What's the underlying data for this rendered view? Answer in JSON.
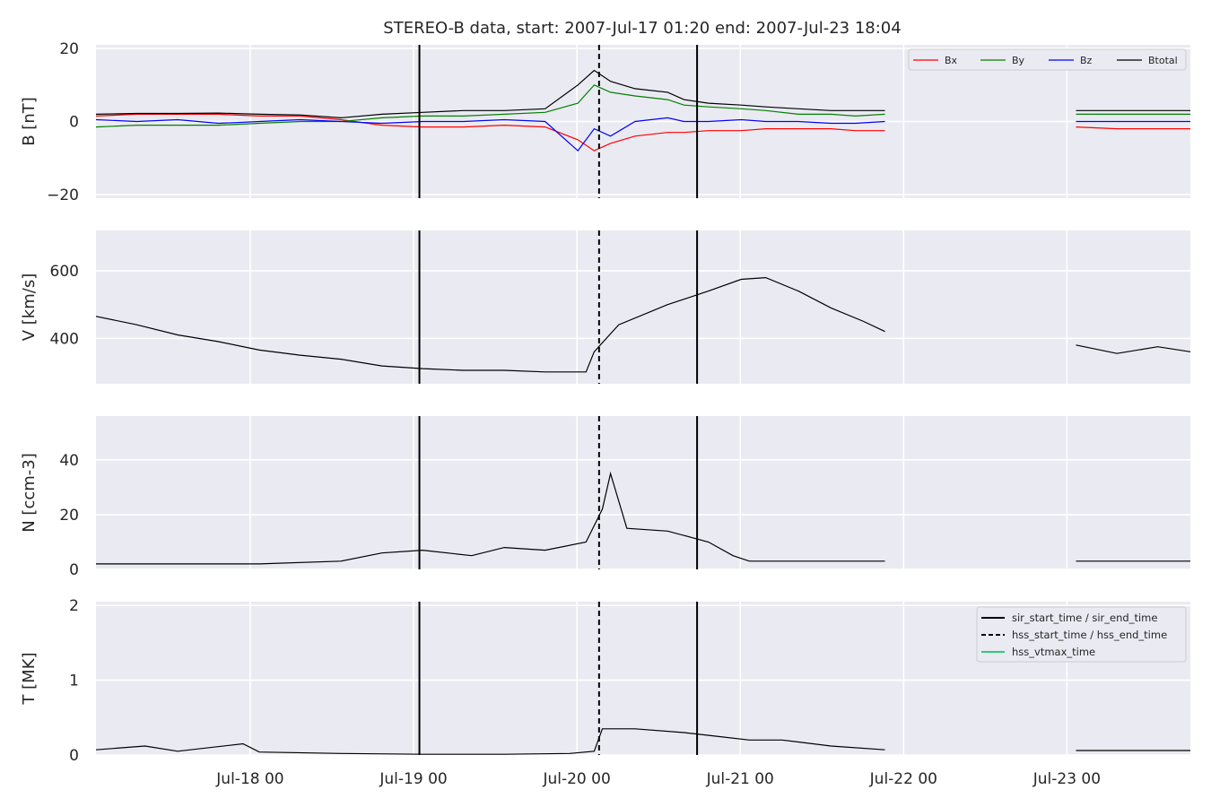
{
  "figure": {
    "title": "STEREO-B data, start: 2007-Jul-17 01:20  end: 2007-Jul-23 18:04"
  },
  "colors": {
    "panel_bg": "#eaeaf2",
    "grid": "#ffffff",
    "bx": "#ff0000",
    "by": "#008000",
    "bz": "#0000ff",
    "btotal": "#000000",
    "vtmax": "#2ecc71"
  },
  "chart_data": [
    {
      "type": "line",
      "id": "B",
      "ylabel": "B [nT]",
      "ylim": [
        -21,
        21
      ],
      "yticks": [
        -20,
        0,
        20
      ],
      "ytick_labels": [
        "−20",
        "0",
        "20"
      ],
      "grid": true,
      "legend": {
        "placement": "top-right",
        "entries": [
          "Bx",
          "By",
          "Bz",
          "Btotal"
        ]
      },
      "x_days": [
        0,
        0.25,
        0.5,
        0.75,
        1.0,
        1.25,
        1.5,
        1.75,
        2.0,
        2.25,
        2.5,
        2.75,
        2.95,
        3.05,
        3.15,
        3.3,
        3.5,
        3.6,
        3.75,
        3.95,
        4.1,
        4.3,
        4.5,
        4.65,
        4.83
      ],
      "series": [
        {
          "name": "Bx",
          "values": [
            1.5,
            2.0,
            2.0,
            2.0,
            1.5,
            1.5,
            0.5,
            -1.0,
            -1.5,
            -1.5,
            -1.0,
            -1.5,
            -5.0,
            -8.0,
            -6.0,
            -4.0,
            -3.0,
            -3.0,
            -2.5,
            -2.5,
            -2.0,
            -2.0,
            -2.0,
            -2.5,
            -2.5
          ]
        },
        {
          "name": "By",
          "values": [
            -1.5,
            -1.0,
            -1.0,
            -1.0,
            -0.5,
            0.0,
            0.0,
            1.0,
            1.5,
            1.5,
            2.0,
            2.5,
            5.0,
            10.0,
            8.0,
            7.0,
            6.0,
            4.5,
            4.0,
            3.5,
            3.0,
            2.0,
            2.0,
            1.5,
            2.0
          ]
        },
        {
          "name": "Bz",
          "values": [
            0.5,
            0.0,
            0.5,
            -0.5,
            0.0,
            0.5,
            0.0,
            -0.5,
            0.0,
            0.0,
            0.5,
            0.0,
            -8.0,
            -2.0,
            -4.0,
            0.0,
            1.0,
            0.0,
            0.0,
            0.5,
            0.0,
            0.0,
            -0.5,
            -0.5,
            0.0
          ]
        },
        {
          "name": "Btotal",
          "values": [
            2.0,
            2.2,
            2.2,
            2.3,
            2.0,
            1.8,
            1.0,
            2.0,
            2.5,
            3.0,
            3.0,
            3.5,
            10.0,
            14.0,
            11.0,
            9.0,
            8.0,
            6.0,
            5.0,
            4.5,
            4.0,
            3.5,
            3.0,
            3.0,
            3.0
          ]
        }
      ],
      "x2_days": [
        6.0,
        6.25,
        6.5,
        6.7
      ],
      "series2": [
        {
          "name": "Bx",
          "values": [
            -1.5,
            -2.0,
            -2.0,
            -2.0
          ]
        },
        {
          "name": "By",
          "values": [
            2.0,
            2.0,
            2.0,
            2.0
          ]
        },
        {
          "name": "Bz",
          "values": [
            0.0,
            0.0,
            0.0,
            0.0
          ]
        },
        {
          "name": "Btotal",
          "values": [
            3.0,
            3.0,
            3.0,
            3.0
          ]
        }
      ]
    },
    {
      "type": "line",
      "id": "V",
      "ylabel": "V [km/s]",
      "ylim": [
        265,
        720
      ],
      "yticks": [
        400,
        600
      ],
      "ytick_labels": [
        "400",
        "600"
      ],
      "grid": true,
      "x_days": [
        0,
        0.25,
        0.5,
        0.75,
        1.0,
        1.25,
        1.5,
        1.75,
        2.0,
        2.25,
        2.5,
        2.75,
        3.0,
        3.05,
        3.2,
        3.5,
        3.75,
        3.95,
        4.1,
        4.3,
        4.5,
        4.7,
        4.83
      ],
      "values": [
        465,
        440,
        410,
        390,
        365,
        350,
        338,
        318,
        310,
        305,
        305,
        300,
        300,
        360,
        440,
        500,
        540,
        575,
        580,
        540,
        490,
        450,
        420
      ],
      "x2_days": [
        6.0,
        6.25,
        6.5,
        6.7
      ],
      "values2": [
        380,
        355,
        375,
        360
      ]
    },
    {
      "type": "line",
      "id": "N",
      "ylabel": "N [ccm-3]",
      "ylim": [
        0,
        56
      ],
      "yticks": [
        0,
        20,
        40
      ],
      "ytick_labels": [
        "0",
        "20",
        "40"
      ],
      "grid": true,
      "x_days": [
        0,
        0.5,
        1.0,
        1.5,
        1.75,
        2.0,
        2.3,
        2.5,
        2.75,
        3.0,
        3.1,
        3.15,
        3.25,
        3.5,
        3.75,
        3.9,
        4.0,
        4.5,
        4.83
      ],
      "values": [
        2,
        2,
        2,
        3,
        6,
        7,
        5,
        8,
        7,
        10,
        22,
        35,
        15,
        14,
        10,
        5,
        3,
        3,
        3
      ],
      "x2_days": [
        6.0,
        6.7
      ],
      "values2": [
        3,
        3
      ]
    },
    {
      "type": "line",
      "id": "T",
      "ylabel": "T [MK]",
      "ylim": [
        0,
        2.05
      ],
      "yticks": [
        0,
        1,
        2
      ],
      "ytick_labels": [
        "0",
        "1",
        "2"
      ],
      "grid": true,
      "legend": {
        "placement": "top-right",
        "entries": [
          "sir_start_time / sir_end_time",
          "hss_start_time / hss_end_time",
          "hss_vtmax_time"
        ]
      },
      "x_days": [
        0,
        0.3,
        0.5,
        0.9,
        1.0,
        1.5,
        2.0,
        2.5,
        2.9,
        3.05,
        3.1,
        3.3,
        3.6,
        3.8,
        4.0,
        4.2,
        4.5,
        4.83
      ],
      "values": [
        0.07,
        0.12,
        0.05,
        0.15,
        0.04,
        0.02,
        0.01,
        0.01,
        0.02,
        0.05,
        0.35,
        0.35,
        0.3,
        0.25,
        0.2,
        0.2,
        0.12,
        0.07
      ],
      "x2_days": [
        6.0,
        6.7
      ],
      "values2": [
        0.06,
        0.06
      ]
    }
  ],
  "xaxis": {
    "ticks_days": [
      0.9444,
      1.9444,
      2.9444,
      3.9444,
      4.9444,
      5.9444
    ],
    "tick_labels": [
      "Jul-18 00",
      "Jul-19 00",
      "Jul-20 00",
      "Jul-21 00",
      "Jul-22 00",
      "Jul-23 00"
    ],
    "range_days": [
      0,
      6.7
    ]
  },
  "events": {
    "sir_start_time": 1.98,
    "hss_start_time": 3.08,
    "sir_end_time": 3.68
  }
}
